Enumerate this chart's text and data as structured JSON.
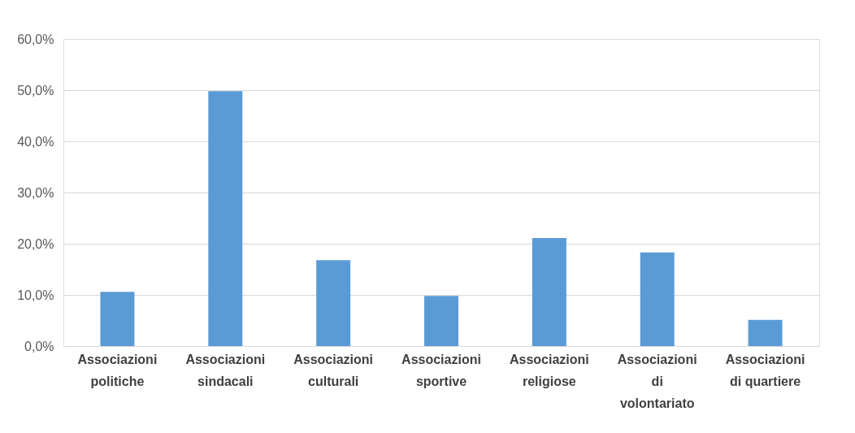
{
  "chart_data": {
    "type": "bar",
    "categories": [
      "Associazioni politiche",
      "Associazioni sindacali",
      "Associazioni culturali",
      "Associazioni sportive",
      "Associazioni religiose",
      "Associazioni di volontariato",
      "Associazioni di quartiere"
    ],
    "values": [
      10.6,
      49.8,
      16.8,
      9.8,
      21.1,
      18.3,
      5.1
    ],
    "color": "#5b9bd5",
    "ylim": [
      0,
      60
    ],
    "yticks": [
      {
        "value": 0,
        "label": "0,0%"
      },
      {
        "value": 10,
        "label": "10,0%"
      },
      {
        "value": 20,
        "label": "20,0%"
      },
      {
        "value": 30,
        "label": "30,0%"
      },
      {
        "value": 40,
        "label": "40,0%"
      },
      {
        "value": 50,
        "label": "50,0%"
      },
      {
        "value": 60,
        "label": "60,0%"
      }
    ],
    "grid": "y"
  }
}
